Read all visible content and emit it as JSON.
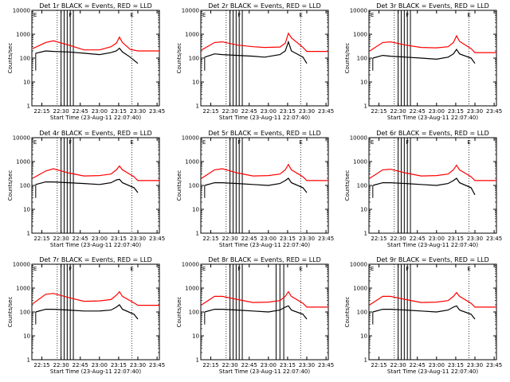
{
  "chart_data": {
    "type": "line",
    "layout": "3x3 grid",
    "x_tick_labels": [
      "22:15",
      "22:30",
      "22:45",
      "23:00",
      "23:15",
      "23:30",
      "23:45"
    ],
    "x_tick_hours": [
      22.25,
      22.5,
      22.75,
      23.0,
      23.25,
      23.5,
      23.75
    ],
    "xlim_hours": [
      22.12,
      23.78
    ],
    "y_scale": "log",
    "ylim": [
      1,
      10000
    ],
    "y_tick_labels": [
      "1",
      "10",
      "100",
      "1000",
      "10000"
    ],
    "ylabel": "Counts/sec",
    "xlabel": "Start Time (23-Aug-11 22:07:40)",
    "series_colors": {
      "events": "#000000",
      "lld": "#ff0000"
    },
    "reference_lines_hours": [
      22.45,
      23.42
    ],
    "marker_labels": [
      "E",
      "F",
      "E"
    ],
    "panels": [
      {
        "title": "Det 1r BLACK = Events, RED = LLD",
        "lld": [
          [
            22.13,
            250
          ],
          [
            22.3,
            450
          ],
          [
            22.4,
            530
          ],
          [
            22.6,
            350
          ],
          [
            22.8,
            220
          ],
          [
            23.0,
            220
          ],
          [
            23.15,
            300
          ],
          [
            23.22,
            420
          ],
          [
            23.26,
            750
          ],
          [
            23.3,
            450
          ],
          [
            23.4,
            230
          ],
          [
            23.5,
            200
          ],
          [
            23.78,
            200
          ]
        ],
        "events": [
          [
            22.17,
            160
          ],
          [
            22.3,
            200
          ],
          [
            22.4,
            190
          ],
          [
            22.6,
            180
          ],
          [
            22.8,
            160
          ],
          [
            23.0,
            140
          ],
          [
            23.15,
            170
          ],
          [
            23.22,
            200
          ],
          [
            23.26,
            260
          ],
          [
            23.3,
            180
          ],
          [
            23.4,
            110
          ],
          [
            23.5,
            60
          ]
        ],
        "gaps": [
          22.5,
          22.54,
          22.58,
          22.62,
          22.66
        ]
      },
      {
        "title": "Det 2r BLACK = Events, RED = LLD",
        "lld": [
          [
            22.13,
            220
          ],
          [
            22.3,
            450
          ],
          [
            22.4,
            480
          ],
          [
            22.6,
            350
          ],
          [
            22.8,
            300
          ],
          [
            22.95,
            280
          ],
          [
            23.15,
            290
          ],
          [
            23.22,
            420
          ],
          [
            23.26,
            1100
          ],
          [
            23.3,
            700
          ],
          [
            23.45,
            280
          ],
          [
            23.5,
            190
          ],
          [
            23.78,
            190
          ]
        ],
        "events": [
          [
            22.17,
            110
          ],
          [
            22.3,
            150
          ],
          [
            22.4,
            140
          ],
          [
            22.6,
            130
          ],
          [
            22.8,
            120
          ],
          [
            22.95,
            110
          ],
          [
            23.15,
            140
          ],
          [
            23.22,
            200
          ],
          [
            23.26,
            480
          ],
          [
            23.3,
            200
          ],
          [
            23.45,
            110
          ],
          [
            23.5,
            60
          ]
        ],
        "gaps": [
          22.5,
          22.54,
          22.58,
          22.62,
          22.66
        ]
      },
      {
        "title": "Det 3r BLACK = Events, RED = LLD",
        "lld": [
          [
            22.13,
            200
          ],
          [
            22.3,
            450
          ],
          [
            22.4,
            480
          ],
          [
            22.6,
            350
          ],
          [
            22.8,
            280
          ],
          [
            23.0,
            270
          ],
          [
            23.15,
            300
          ],
          [
            23.22,
            450
          ],
          [
            23.26,
            850
          ],
          [
            23.3,
            500
          ],
          [
            23.45,
            250
          ],
          [
            23.5,
            170
          ],
          [
            23.78,
            170
          ]
        ],
        "events": [
          [
            22.17,
            100
          ],
          [
            22.3,
            130
          ],
          [
            22.4,
            120
          ],
          [
            22.6,
            110
          ],
          [
            22.8,
            100
          ],
          [
            23.0,
            90
          ],
          [
            23.15,
            110
          ],
          [
            23.22,
            150
          ],
          [
            23.26,
            230
          ],
          [
            23.3,
            150
          ],
          [
            23.45,
            100
          ],
          [
            23.5,
            60
          ]
        ],
        "gaps": [
          22.5,
          22.54,
          22.58,
          22.62,
          22.66
        ]
      },
      {
        "title": "Det 4r BLACK = Events, RED = LLD",
        "lld": [
          [
            22.13,
            200
          ],
          [
            22.3,
            400
          ],
          [
            22.4,
            500
          ],
          [
            22.6,
            330
          ],
          [
            22.8,
            250
          ],
          [
            23.0,
            260
          ],
          [
            23.15,
            300
          ],
          [
            23.22,
            450
          ],
          [
            23.26,
            650
          ],
          [
            23.3,
            450
          ],
          [
            23.45,
            230
          ],
          [
            23.5,
            160
          ],
          [
            23.78,
            160
          ]
        ],
        "events": [
          [
            22.17,
            110
          ],
          [
            22.3,
            140
          ],
          [
            22.4,
            140
          ],
          [
            22.6,
            130
          ],
          [
            22.8,
            120
          ],
          [
            23.0,
            110
          ],
          [
            23.15,
            130
          ],
          [
            23.22,
            170
          ],
          [
            23.26,
            180
          ],
          [
            23.3,
            130
          ],
          [
            23.45,
            80
          ],
          [
            23.5,
            50
          ]
        ],
        "gaps": [
          22.5,
          22.54,
          22.58,
          22.62,
          22.66
        ]
      },
      {
        "title": "Det 5r BLACK = Events, RED = LLD",
        "lld": [
          [
            22.13,
            200
          ],
          [
            22.3,
            450
          ],
          [
            22.4,
            500
          ],
          [
            22.6,
            330
          ],
          [
            22.8,
            250
          ],
          [
            23.0,
            260
          ],
          [
            23.15,
            300
          ],
          [
            23.22,
            450
          ],
          [
            23.26,
            750
          ],
          [
            23.3,
            450
          ],
          [
            23.45,
            230
          ],
          [
            23.5,
            160
          ],
          [
            23.78,
            160
          ]
        ],
        "events": [
          [
            22.17,
            100
          ],
          [
            22.3,
            130
          ],
          [
            22.4,
            130
          ],
          [
            22.6,
            120
          ],
          [
            22.8,
            110
          ],
          [
            23.0,
            100
          ],
          [
            23.15,
            120
          ],
          [
            23.22,
            160
          ],
          [
            23.26,
            200
          ],
          [
            23.3,
            130
          ],
          [
            23.45,
            80
          ],
          [
            23.5,
            50
          ]
        ],
        "gaps": [
          22.5,
          22.54,
          22.58,
          22.62,
          22.66
        ]
      },
      {
        "title": "Det 6r BLACK = Events, RED = LLD",
        "lld": [
          [
            22.13,
            200
          ],
          [
            22.3,
            450
          ],
          [
            22.4,
            480
          ],
          [
            22.6,
            330
          ],
          [
            22.8,
            250
          ],
          [
            23.0,
            260
          ],
          [
            23.15,
            300
          ],
          [
            23.22,
            450
          ],
          [
            23.26,
            700
          ],
          [
            23.3,
            450
          ],
          [
            23.45,
            230
          ],
          [
            23.5,
            160
          ],
          [
            23.78,
            160
          ]
        ],
        "events": [
          [
            22.17,
            100
          ],
          [
            22.3,
            130
          ],
          [
            22.4,
            130
          ],
          [
            22.6,
            120
          ],
          [
            22.8,
            110
          ],
          [
            23.0,
            100
          ],
          [
            23.15,
            120
          ],
          [
            23.22,
            160
          ],
          [
            23.26,
            200
          ],
          [
            23.3,
            130
          ],
          [
            23.45,
            80
          ],
          [
            23.5,
            40
          ]
        ],
        "gaps": [
          22.5,
          22.54,
          22.58,
          22.62,
          22.66
        ]
      },
      {
        "title": "Det 7r BLACK = Events, RED = LLD",
        "lld": [
          [
            22.13,
            220
          ],
          [
            22.3,
            550
          ],
          [
            22.4,
            600
          ],
          [
            22.6,
            400
          ],
          [
            22.8,
            280
          ],
          [
            23.0,
            290
          ],
          [
            23.15,
            330
          ],
          [
            23.22,
            500
          ],
          [
            23.26,
            700
          ],
          [
            23.3,
            450
          ],
          [
            23.45,
            240
          ],
          [
            23.5,
            190
          ],
          [
            23.78,
            190
          ]
        ],
        "events": [
          [
            22.17,
            100
          ],
          [
            22.3,
            130
          ],
          [
            22.4,
            130
          ],
          [
            22.6,
            120
          ],
          [
            22.8,
            110
          ],
          [
            23.0,
            110
          ],
          [
            23.15,
            120
          ],
          [
            23.22,
            160
          ],
          [
            23.26,
            200
          ],
          [
            23.3,
            130
          ],
          [
            23.45,
            80
          ],
          [
            23.5,
            50
          ]
        ],
        "gaps": [
          22.5,
          22.54,
          22.58,
          22.62,
          22.66
        ]
      },
      {
        "title": "Det 8r BLACK = Events, RED = LLD",
        "lld": [
          [
            22.13,
            200
          ],
          [
            22.3,
            450
          ],
          [
            22.4,
            450
          ],
          [
            22.6,
            330
          ],
          [
            22.8,
            250
          ],
          [
            23.0,
            260
          ],
          [
            23.15,
            300
          ],
          [
            23.22,
            450
          ],
          [
            23.26,
            700
          ],
          [
            23.3,
            450
          ],
          [
            23.45,
            230
          ],
          [
            23.5,
            160
          ],
          [
            23.78,
            160
          ]
        ],
        "events": [
          [
            22.17,
            100
          ],
          [
            22.3,
            130
          ],
          [
            22.4,
            130
          ],
          [
            22.6,
            120
          ],
          [
            22.8,
            110
          ],
          [
            23.0,
            100
          ],
          [
            23.15,
            120
          ],
          [
            23.22,
            160
          ],
          [
            23.26,
            180
          ],
          [
            23.3,
            120
          ],
          [
            23.45,
            80
          ],
          [
            23.5,
            50
          ]
        ],
        "gaps": [
          22.5,
          22.54,
          22.58,
          22.62,
          22.66,
          23.1,
          23.15,
          23.2
        ]
      },
      {
        "title": "Det 9r BLACK = Events, RED = LLD",
        "lld": [
          [
            22.13,
            200
          ],
          [
            22.3,
            450
          ],
          [
            22.4,
            450
          ],
          [
            22.6,
            330
          ],
          [
            22.8,
            250
          ],
          [
            23.0,
            260
          ],
          [
            23.15,
            300
          ],
          [
            23.22,
            450
          ],
          [
            23.26,
            650
          ],
          [
            23.3,
            450
          ],
          [
            23.45,
            230
          ],
          [
            23.5,
            160
          ],
          [
            23.78,
            160
          ]
        ],
        "events": [
          [
            22.17,
            100
          ],
          [
            22.3,
            130
          ],
          [
            22.4,
            130
          ],
          [
            22.6,
            120
          ],
          [
            22.8,
            110
          ],
          [
            23.0,
            100
          ],
          [
            23.15,
            120
          ],
          [
            23.22,
            160
          ],
          [
            23.26,
            180
          ],
          [
            23.3,
            120
          ],
          [
            23.45,
            80
          ],
          [
            23.5,
            50
          ]
        ],
        "gaps": [
          22.5,
          22.54,
          22.58,
          22.62,
          22.66
        ]
      }
    ]
  }
}
